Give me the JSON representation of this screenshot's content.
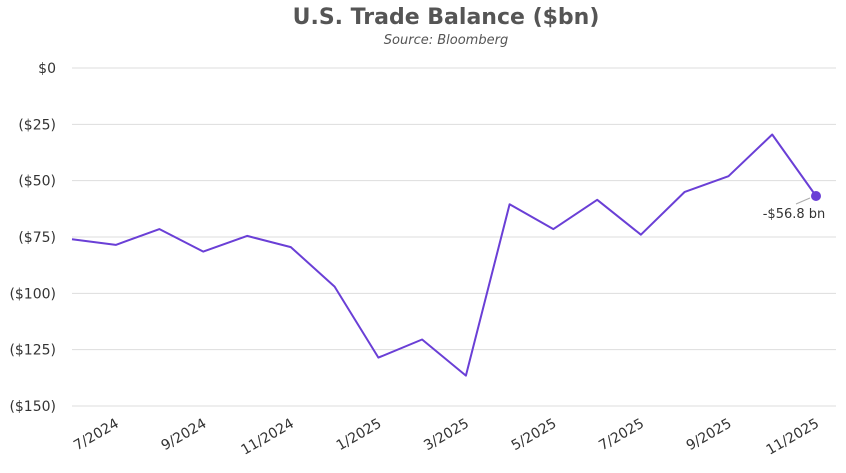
{
  "chart_data": {
    "type": "line",
    "title": "U.S. Trade Balance ($bn)",
    "subtitle": "Source: Bloomberg",
    "xlabel": "",
    "ylabel": "",
    "ylim": [
      -150,
      0
    ],
    "y_ticks": [
      0,
      -25,
      -50,
      -75,
      -100,
      -125,
      -150
    ],
    "y_tick_labels": [
      "$0",
      "($25)",
      "($50)",
      "($75)",
      "($100)",
      "($125)",
      "($150)"
    ],
    "x": [
      "6/2024",
      "7/2024",
      "8/2024",
      "9/2024",
      "10/2024",
      "11/2024",
      "12/2024",
      "1/2025",
      "2/2025",
      "3/2025",
      "4/2025",
      "5/2025",
      "6/2025",
      "7/2025",
      "8/2025",
      "9/2025",
      "10/2025",
      "11/2025"
    ],
    "x_tick_labels": [
      "7/2024",
      "9/2024",
      "11/2024",
      "1/2025",
      "3/2025",
      "5/2025",
      "7/2025",
      "9/2025",
      "11/2025"
    ],
    "grid": true,
    "series": [
      {
        "color": "#6a3fd6",
        "values": [
          -76.0,
          -78.5,
          -71.5,
          -81.5,
          -74.5,
          -79.5,
          -97.0,
          -128.5,
          -120.5,
          -136.5,
          -60.5,
          -71.5,
          -58.5,
          -74.0,
          -55.0,
          -48.0,
          -29.5,
          -56.8
        ]
      }
    ],
    "annotation": {
      "label": "-$56.8 bn",
      "x": "11/2025",
      "value": -56.8
    }
  }
}
